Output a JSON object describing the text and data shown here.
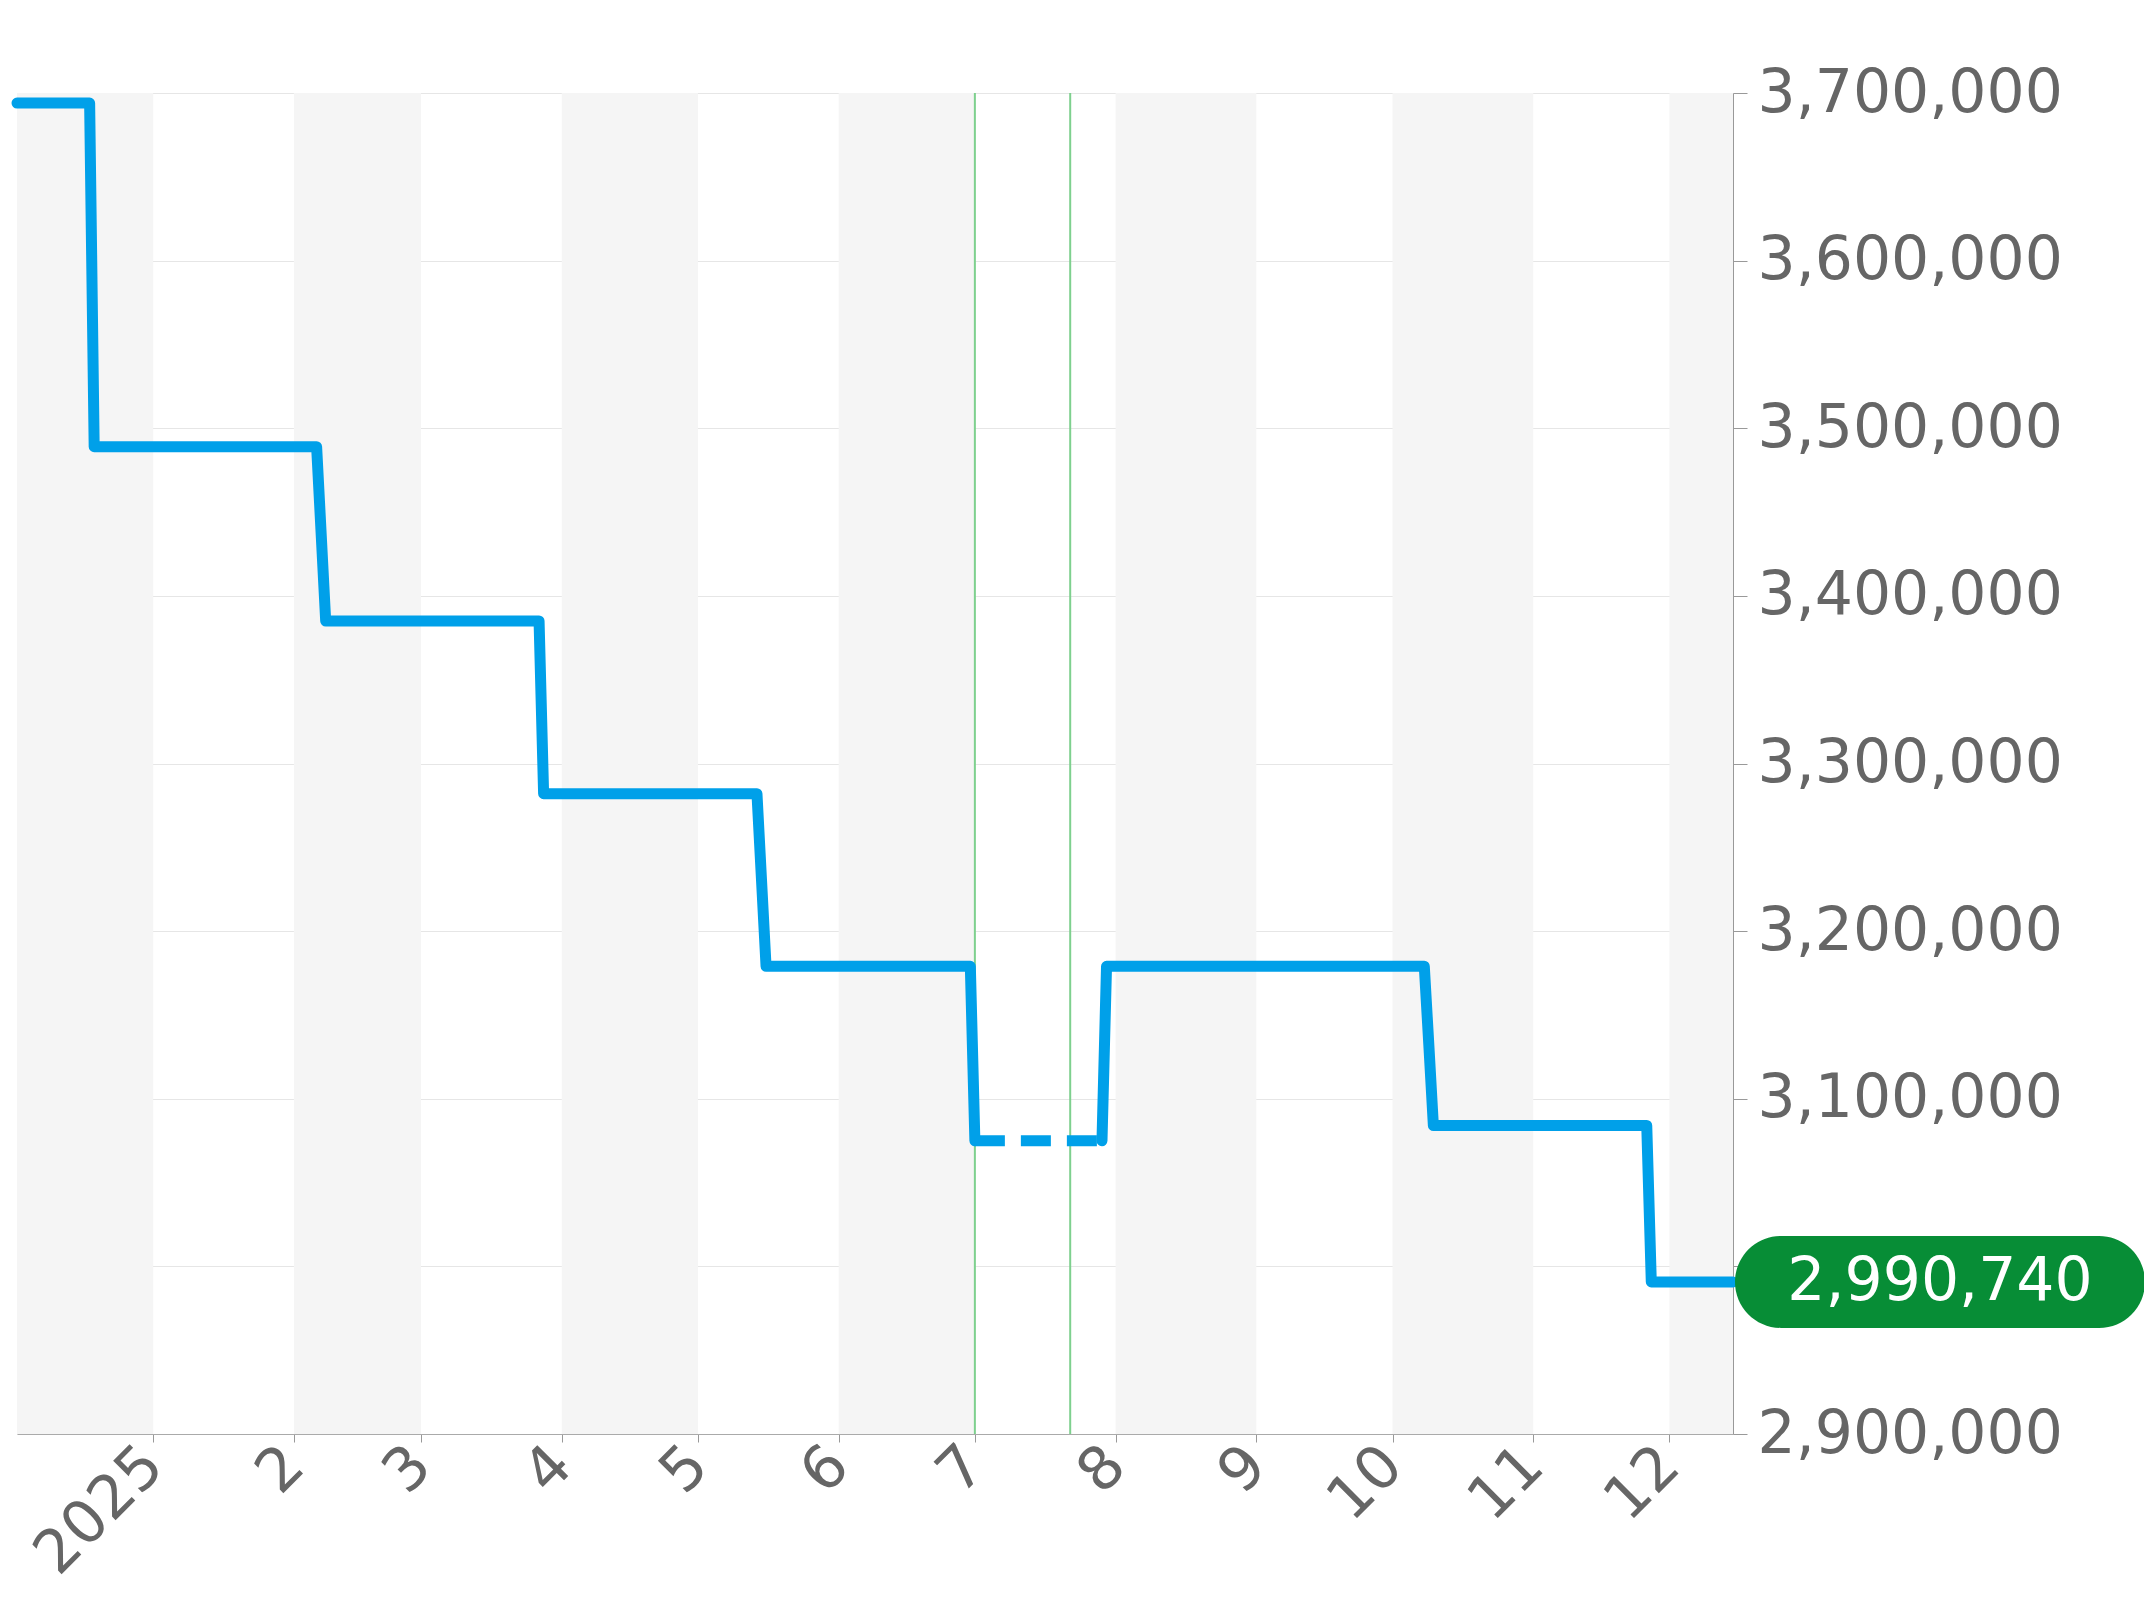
{
  "chart_data": {
    "type": "line",
    "series": [
      {
        "color": "#00a0e9",
        "line_style": "solid",
        "x": [
          "2024-12-02",
          "2024-12-18",
          "2024-12-19",
          "2025-02-06",
          "2025-02-08",
          "2025-03-27",
          "2025-03-28",
          "2025-05-14",
          "2025-05-16",
          "2025-06-30",
          "2025-07-01"
        ],
        "values": [
          3694000,
          3694000,
          3489000,
          3489000,
          3385000,
          3385000,
          3282000,
          3282000,
          3179000,
          3179000,
          3075000
        ]
      },
      {
        "color": "#00a0e9",
        "line_style": "dashed",
        "x": [
          "2025-07-01",
          "2025-07-29"
        ],
        "values": [
          3075000,
          3075000
        ]
      },
      {
        "color": "#00a0e9",
        "line_style": "solid",
        "x": [
          "2025-07-29",
          "2025-07-30",
          "2025-10-08",
          "2025-10-09",
          "2025-10-10",
          "2025-11-26",
          "2025-11-27",
          "2025-12-15"
        ],
        "values": [
          3075000,
          3179000,
          3179000,
          3132000,
          3084000,
          3084000,
          2990740,
          2990740
        ]
      }
    ],
    "xlim": [
      "2024-12-02",
      "2025-12-15"
    ],
    "xticks": [
      {
        "value": "2025-01-01",
        "label": "2025"
      },
      {
        "value": "2025-02-01",
        "label": "2"
      },
      {
        "value": "2025-03-01",
        "label": "3"
      },
      {
        "value": "2025-04-01",
        "label": "4"
      },
      {
        "value": "2025-05-01",
        "label": "5"
      },
      {
        "value": "2025-06-01",
        "label": "6"
      },
      {
        "value": "2025-07-01",
        "label": "7"
      },
      {
        "value": "2025-08-01",
        "label": "8"
      },
      {
        "value": "2025-09-01",
        "label": "9"
      },
      {
        "value": "2025-10-01",
        "label": "10"
      },
      {
        "value": "2025-11-01",
        "label": "11"
      },
      {
        "value": "2025-12-01",
        "label": "12"
      }
    ],
    "ylim": [
      2900000,
      3700000
    ],
    "yticks": [
      {
        "value": 2900000,
        "label": "2,900,000"
      },
      {
        "value": 3000000,
        "label": null
      },
      {
        "value": 3100000,
        "label": "3,100,000"
      },
      {
        "value": 3200000,
        "label": "3,200,000"
      },
      {
        "value": 3300000,
        "label": "3,300,000"
      },
      {
        "value": 3400000,
        "label": "3,400,000"
      },
      {
        "value": 3500000,
        "label": "3,500,000"
      },
      {
        "value": 3600000,
        "label": "3,600,000"
      },
      {
        "value": 3700000,
        "label": "3,700,000"
      }
    ],
    "grid": "y",
    "bands": [
      {
        "axis": "x",
        "from": "2024-12-02",
        "to": "2025-01-01",
        "color": "#f5f5f5"
      },
      {
        "axis": "x",
        "from": "2025-02-01",
        "to": "2025-03-01",
        "color": "#f5f5f5"
      },
      {
        "axis": "x",
        "from": "2025-04-01",
        "to": "2025-05-01",
        "color": "#f5f5f5"
      },
      {
        "axis": "x",
        "from": "2025-06-01",
        "to": "2025-07-01",
        "color": "#f5f5f5"
      },
      {
        "axis": "x",
        "from": "2025-08-01",
        "to": "2025-09-01",
        "color": "#f5f5f5"
      },
      {
        "axis": "x",
        "from": "2025-10-01",
        "to": "2025-11-01",
        "color": "#f5f5f5"
      },
      {
        "axis": "x",
        "from": "2025-12-01",
        "to": "2025-12-15",
        "color": "#f5f5f5"
      }
    ],
    "ref_lines": [
      {
        "axis": "x",
        "value": "2025-07-01",
        "color": "#7ed08e"
      },
      {
        "axis": "x",
        "value": "2025-07-22",
        "color": "#7ed08e"
      }
    ],
    "annotations": [
      {
        "text": "2,990,740",
        "x": "2025-12-15",
        "y": 2990740
      }
    ]
  }
}
